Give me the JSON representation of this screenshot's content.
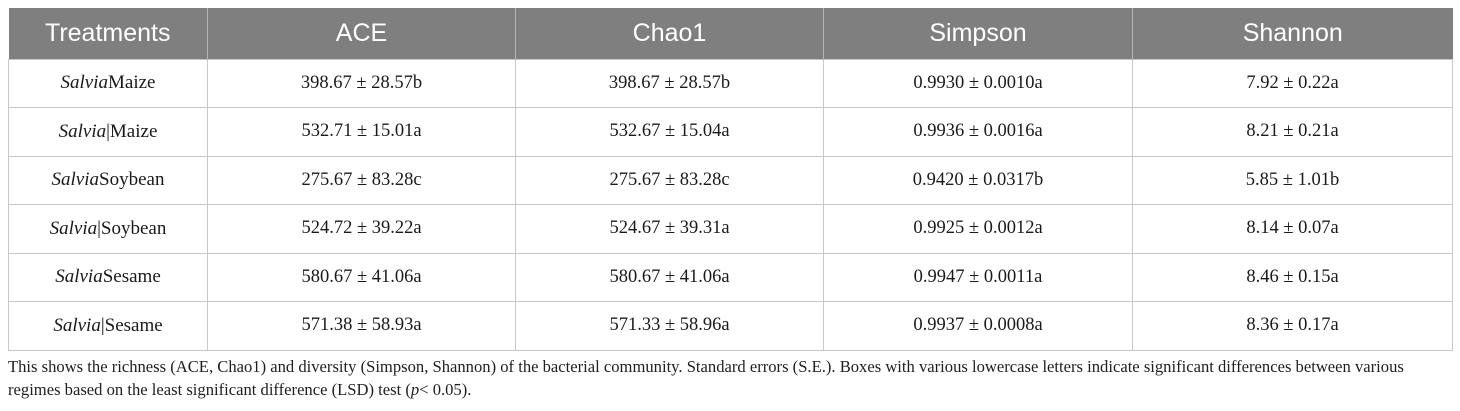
{
  "table": {
    "headers": [
      "Treatments",
      "ACE",
      "Chao1",
      "Simpson",
      "Shannon"
    ],
    "rows": [
      {
        "genus": "Salvia",
        "crop": "Maize",
        "ace": "398.67 ± 28.57b",
        "chao1": "398.67 ± 28.57b",
        "simpson": "0.9930 ± 0.0010a",
        "shannon": "7.92 ± 0.22a"
      },
      {
        "genus": "Salvia",
        "crop": "|Maize",
        "ace": "532.71 ± 15.01a",
        "chao1": "532.67 ± 15.04a",
        "simpson": "0.9936 ± 0.0016a",
        "shannon": "8.21 ± 0.21a"
      },
      {
        "genus": "Salvia",
        "crop": "Soybean",
        "ace": "275.67 ± 83.28c",
        "chao1": "275.67 ± 83.28c",
        "simpson": "0.9420 ± 0.0317b",
        "shannon": "5.85 ± 1.01b"
      },
      {
        "genus": "Salvia",
        "crop": "|Soybean",
        "ace": "524.72 ± 39.22a",
        "chao1": "524.67 ± 39.31a",
        "simpson": "0.9925 ± 0.0012a",
        "shannon": "8.14 ± 0.07a"
      },
      {
        "genus": "Salvia",
        "crop": "Sesame",
        "ace": "580.67 ± 41.06a",
        "chao1": "580.67 ± 41.06a",
        "simpson": "0.9947 ± 0.0011a",
        "shannon": "8.46 ± 0.15a"
      },
      {
        "genus": "Salvia",
        "crop": "|Sesame",
        "ace": "571.38 ± 58.93a",
        "chao1": "571.33 ± 58.96a",
        "simpson": "0.9937 ± 0.0008a",
        "shannon": "8.36 ± 0.17a"
      }
    ]
  },
  "footnote": {
    "text_before": "This shows the richness (ACE, Chao1) and diversity (Simpson, Shannon) of the bacterial community. Standard errors (S.E.). Boxes with various lowercase letters indicate significant differences between various regimes based on the least significant difference (LSD) test (",
    "p_symbol": "p",
    "text_after": "< 0.05)."
  }
}
